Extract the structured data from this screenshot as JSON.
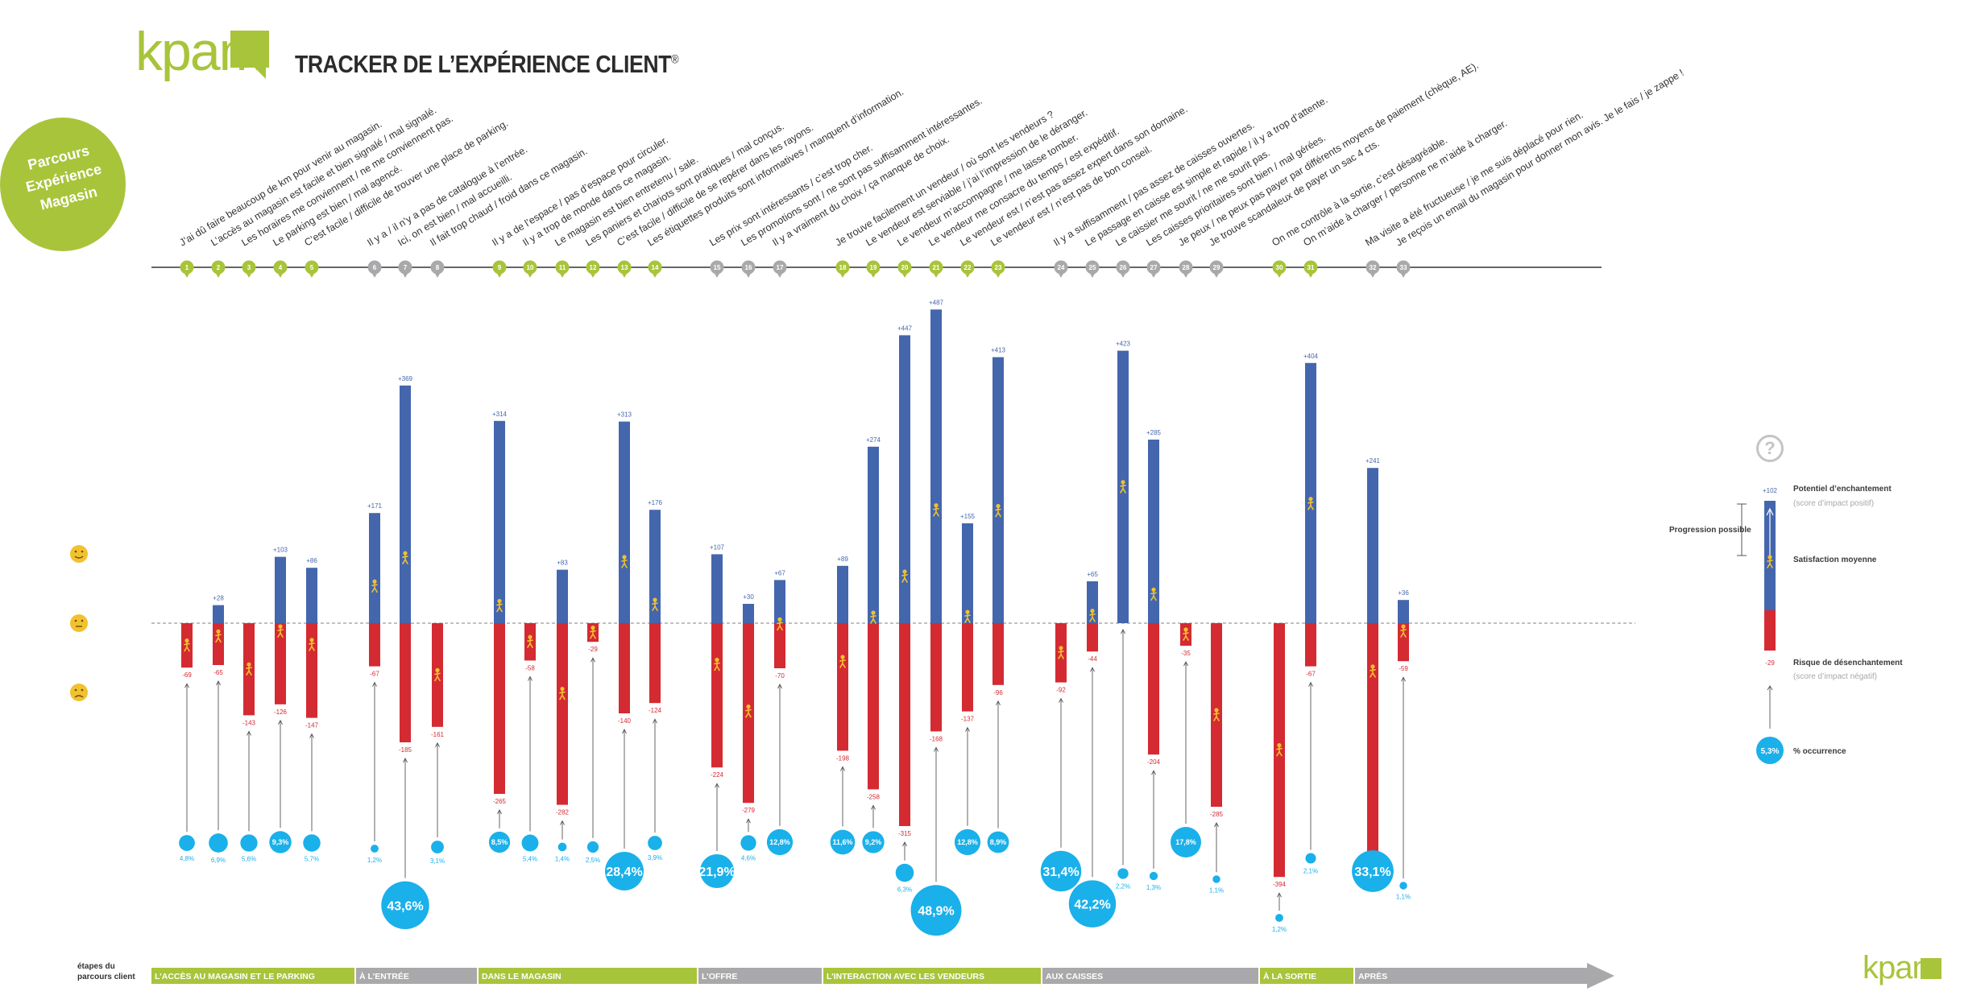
{
  "brand": "kpam",
  "title": "TRACKER DE L’EXPÉRIENCE CLIENT",
  "title_mark": "®",
  "badge": "Parcours\nExpérience\nMagasin",
  "stages_label": "étapes du\nparcours client",
  "legend": {
    "help": "?",
    "top_value": "+102",
    "potentiel": "Potentiel d’enchantement",
    "potentiel_sub": "(score d’impact positif)",
    "progression": "Progression possible",
    "satisfaction": "Satisfaction moyenne",
    "risque": "Risque de désenchantement",
    "risque_sub": "(score d’impact négatif)",
    "bottom_value": "-29",
    "occ_value": "5,3%",
    "occ_label": "% occurrence"
  },
  "colors": {
    "green": "#a8c43a",
    "blue": "#4466ad",
    "red": "#d42a32",
    "cyan": "#1ab0ea",
    "grey": "#a9a9ab",
    "yellow": "#f2c12e"
  },
  "chart_data": {
    "type": "bar",
    "items": [
      {
        "n": "1",
        "label": "J’ai dû faire beaucoup de km pour venir au magasin.",
        "pos": null,
        "neg": "-69",
        "occ": "4,8%",
        "grp": 0
      },
      {
        "n": "2",
        "label": "L’accès au magasin est facile et bien signalé / mal signalé.",
        "pos": "+28",
        "neg": "-65",
        "occ": "6,9%",
        "grp": 0
      },
      {
        "n": "3",
        "label": "Les horaires me conviennent / ne me conviennent pas.",
        "pos": null,
        "neg": "-143",
        "occ": "5,6%",
        "grp": 0
      },
      {
        "n": "4",
        "label": "Le parking est bien / mal agencé.",
        "pos": "+103",
        "neg": "-126",
        "occ": "9,3%",
        "grp": 0
      },
      {
        "n": "5",
        "label": "C’est facile / difficile de trouver une place de parking.",
        "pos": "+86",
        "neg": "-147",
        "occ": "5,7%",
        "grp": 0
      },
      {
        "n": "6",
        "label": "Il y a / il n’y a pas de catalogue à l’entrée.",
        "pos": "+171",
        "neg": "-67",
        "occ": "1,2%",
        "grp": 1
      },
      {
        "n": "7",
        "label": "Ici, on est bien / mal accueilli.",
        "pos": "+369",
        "neg": "-185",
        "occ": "43,6%",
        "grp": 1
      },
      {
        "n": "8",
        "label": "Il fait trop chaud / froid dans ce magasin.",
        "pos": null,
        "neg": "-161",
        "occ": "3,1%",
        "grp": 1
      },
      {
        "n": "9",
        "label": "Il y a de l’espace / pas d’espace pour circuler.",
        "pos": "+314",
        "neg": "-265",
        "occ": "8,5%",
        "grp": 2
      },
      {
        "n": "10",
        "label": "Il y a trop de monde dans ce magasin.",
        "pos": null,
        "neg": "-58",
        "occ": "5,4%",
        "grp": 2
      },
      {
        "n": "11",
        "label": "Le magasin est bien entretenu / sale.",
        "pos": "+83",
        "neg": "-282",
        "occ": "1,4%",
        "grp": 2
      },
      {
        "n": "12",
        "label": "Les paniers et chariots sont pratiques / mal conçus.",
        "pos": null,
        "neg": "-29",
        "occ": "2,5%",
        "grp": 2
      },
      {
        "n": "13",
        "label": "C’est facile / difficile de se repérer dans les rayons.",
        "pos": "+313",
        "neg": "-140",
        "occ": "28,4%",
        "grp": 2
      },
      {
        "n": "14",
        "label": "Les étiquettes produits sont informatives / manquent d’information.",
        "pos": "+176",
        "neg": "-124",
        "occ": "3,9%",
        "grp": 2
      },
      {
        "n": "15",
        "label": "Les prix sont intéressants / c’est trop cher.",
        "pos": "+107",
        "neg": "-224",
        "occ": "21,9%",
        "grp": 3
      },
      {
        "n": "16",
        "label": "Les promotions sont / ne sont pas suffisamment intéressantes.",
        "pos": "+30",
        "neg": "-279",
        "occ": "4,6%",
        "grp": 3
      },
      {
        "n": "17",
        "label": "Il y a vraiment du choix / ça manque de choix.",
        "pos": "+67",
        "neg": "-70",
        "occ": "12,8%",
        "grp": 3
      },
      {
        "n": "18",
        "label": "Je trouve facilement un vendeur / où sont les vendeurs ?",
        "pos": "+89",
        "neg": "-198",
        "occ": "11,6%",
        "grp": 4
      },
      {
        "n": "19",
        "label": "Le vendeur est serviable / j’ai l’impression de le déranger.",
        "pos": "+274",
        "neg": "-258",
        "occ": "9,2%",
        "grp": 4
      },
      {
        "n": "20",
        "label": "Le vendeur m’accompagne / me laisse tomber.",
        "pos": "+447",
        "neg": "-315",
        "occ": "6,3%",
        "grp": 4
      },
      {
        "n": "21",
        "label": "Le vendeur me consacre du temps / est expéditif.",
        "pos": "+487",
        "neg": "-168",
        "occ": "48,9%",
        "grp": 4
      },
      {
        "n": "22",
        "label": "Le vendeur est / n’est pas assez expert dans son domaine.",
        "pos": "+155",
        "neg": "-137",
        "occ": "12,8%",
        "grp": 4
      },
      {
        "n": "23",
        "label": "Le vendeur est / n’est pas de bon conseil.",
        "pos": "+413",
        "neg": "-96",
        "occ": "8,9%",
        "grp": 4
      },
      {
        "n": "24",
        "label": "Il y a suffisamment / pas assez de caisses ouvertes.",
        "pos": null,
        "neg": "-92",
        "occ": "31,4%",
        "grp": 5
      },
      {
        "n": "25",
        "label": "Le passage en caisse est simple et rapide / il y a trop d’attente.",
        "pos": "+65",
        "neg": "-44",
        "occ": "42,2%",
        "grp": 5
      },
      {
        "n": "26",
        "label": "Le caissier me sourit / ne me sourit pas.",
        "pos": "+423",
        "neg": null,
        "occ": "2,2%",
        "grp": 5
      },
      {
        "n": "27",
        "label": "Les caisses prioritaires sont bien / mal gérées.",
        "pos": "+285",
        "neg": "-204",
        "occ": "1,3%",
        "grp": 5
      },
      {
        "n": "28",
        "label": "Je peux / ne peux pas payer par différents moyens de paiement (chèque, AE).",
        "pos": null,
        "neg": "-35",
        "occ": "17,8%",
        "grp": 5
      },
      {
        "n": "29",
        "label": "Je trouve scandaleux de payer un sac 4 cts.",
        "pos": null,
        "neg": "-285",
        "occ": "1,1%",
        "grp": 5
      },
      {
        "n": "30",
        "label": "On me contrôle à la sortie, c’est désagréable.",
        "pos": null,
        "neg": "-394",
        "occ": "1,2%",
        "grp": 6
      },
      {
        "n": "31",
        "label": "On m’aide à charger / personne ne m’aide à charger.",
        "pos": "+404",
        "neg": "-67",
        "occ": "2,1%",
        "grp": 6
      },
      {
        "n": "32",
        "label": "Ma visite a été fructueuse / je me suis déplacé pour rien.",
        "pos": "+241",
        "neg": "-377",
        "occ": "33,1%",
        "grp": 7
      },
      {
        "n": "33",
        "label": "Je reçois un email du magasin pour donner mon avis. Je le fais / je zappe !",
        "pos": "+36",
        "neg": "-59",
        "occ": "1,1%",
        "grp": 7
      }
    ],
    "groups": [
      {
        "label": "L’ACCÈS AU MAGASIN ET LE PARKING",
        "color": "green"
      },
      {
        "label": "À L’ENTRÉE",
        "color": "grey"
      },
      {
        "label": "DANS LE MAGASIN",
        "color": "green"
      },
      {
        "label": "L’OFFRE",
        "color": "grey"
      },
      {
        "label": "L’INTERACTION AVEC LES VENDEURS",
        "color": "green"
      },
      {
        "label": "AUX CAISSES",
        "color": "grey"
      },
      {
        "label": "À LA SORTIE",
        "color": "green"
      },
      {
        "label": "APRÈS",
        "color": "grey"
      }
    ]
  }
}
